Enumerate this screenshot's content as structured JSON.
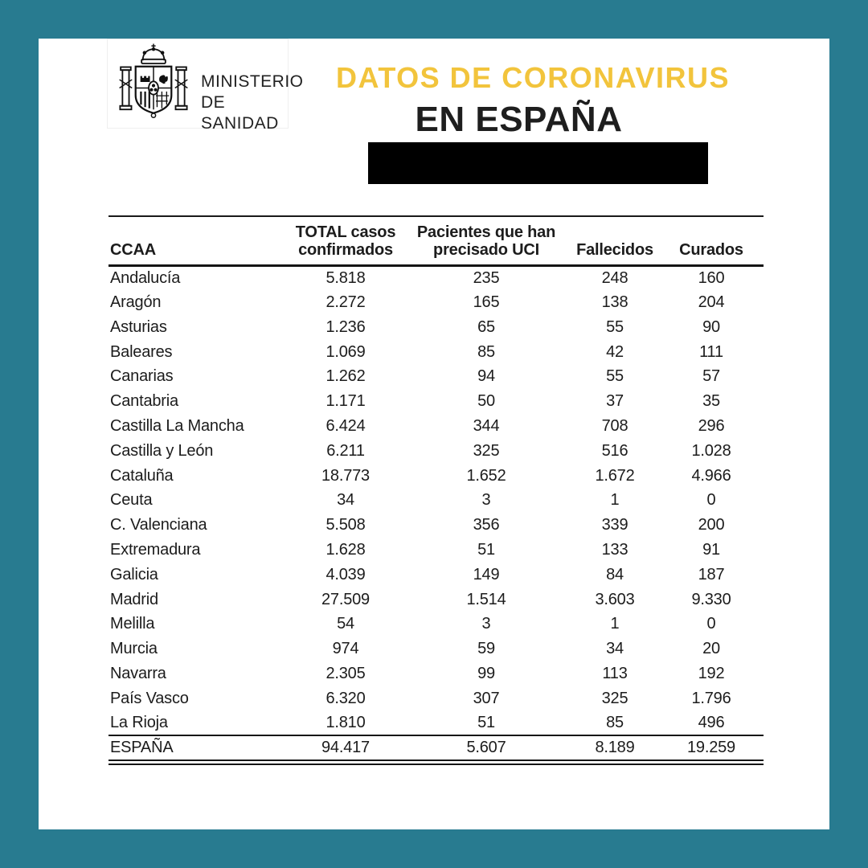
{
  "page": {
    "frame_color": "#287B90",
    "background_color": "#FFFFFF"
  },
  "ministry": {
    "name_line1": "MINISTERIO",
    "name_line2": "DE SANIDAD",
    "emblem_icon": "spanish-coat-of-arms"
  },
  "title": {
    "line1": "DATOS DE CORONAVIRUS",
    "line2": "EN ESPAÑA",
    "line1_color": "#F2C43C",
    "line2_color": "#1E1E1E"
  },
  "redacted_bar": {
    "color": "#000000"
  },
  "chart_data": {
    "type": "table",
    "title": "DATOS DE CORONAVIRUS EN ESPAÑA",
    "columns": [
      "CCAA",
      "TOTAL casos confirmados",
      "Pacientes que han precisado UCI",
      "Fallecidos",
      "Curados"
    ],
    "rows": [
      [
        "Andalucía",
        "5.818",
        "235",
        "248",
        "160"
      ],
      [
        "Aragón",
        "2.272",
        "165",
        "138",
        "204"
      ],
      [
        "Asturias",
        "1.236",
        "65",
        "55",
        "90"
      ],
      [
        "Baleares",
        "1.069",
        "85",
        "42",
        "111"
      ],
      [
        "Canarias",
        "1.262",
        "94",
        "55",
        "57"
      ],
      [
        "Cantabria",
        "1.171",
        "50",
        "37",
        "35"
      ],
      [
        "Castilla La Mancha",
        "6.424",
        "344",
        "708",
        "296"
      ],
      [
        "Castilla y León",
        "6.211",
        "325",
        "516",
        "1.028"
      ],
      [
        "Cataluña",
        "18.773",
        "1.652",
        "1.672",
        "4.966"
      ],
      [
        "Ceuta",
        "34",
        "3",
        "1",
        "0"
      ],
      [
        "C. Valenciana",
        "5.508",
        "356",
        "339",
        "200"
      ],
      [
        "Extremadura",
        "1.628",
        "51",
        "133",
        "91"
      ],
      [
        "Galicia",
        "4.039",
        "149",
        "84",
        "187"
      ],
      [
        "Madrid",
        "27.509",
        "1.514",
        "3.603",
        "9.330"
      ],
      [
        "Melilla",
        "54",
        "3",
        "1",
        "0"
      ],
      [
        "Murcia",
        "974",
        "59",
        "34",
        "20"
      ],
      [
        "Navarra",
        "2.305",
        "99",
        "113",
        "192"
      ],
      [
        "País Vasco",
        "6.320",
        "307",
        "325",
        "1.796"
      ],
      [
        "La Rioja",
        "1.810",
        "51",
        "85",
        "496"
      ]
    ],
    "total_row": [
      "ESPAÑA",
      "94.417",
      "5.607",
      "8.189",
      "19.259"
    ]
  }
}
